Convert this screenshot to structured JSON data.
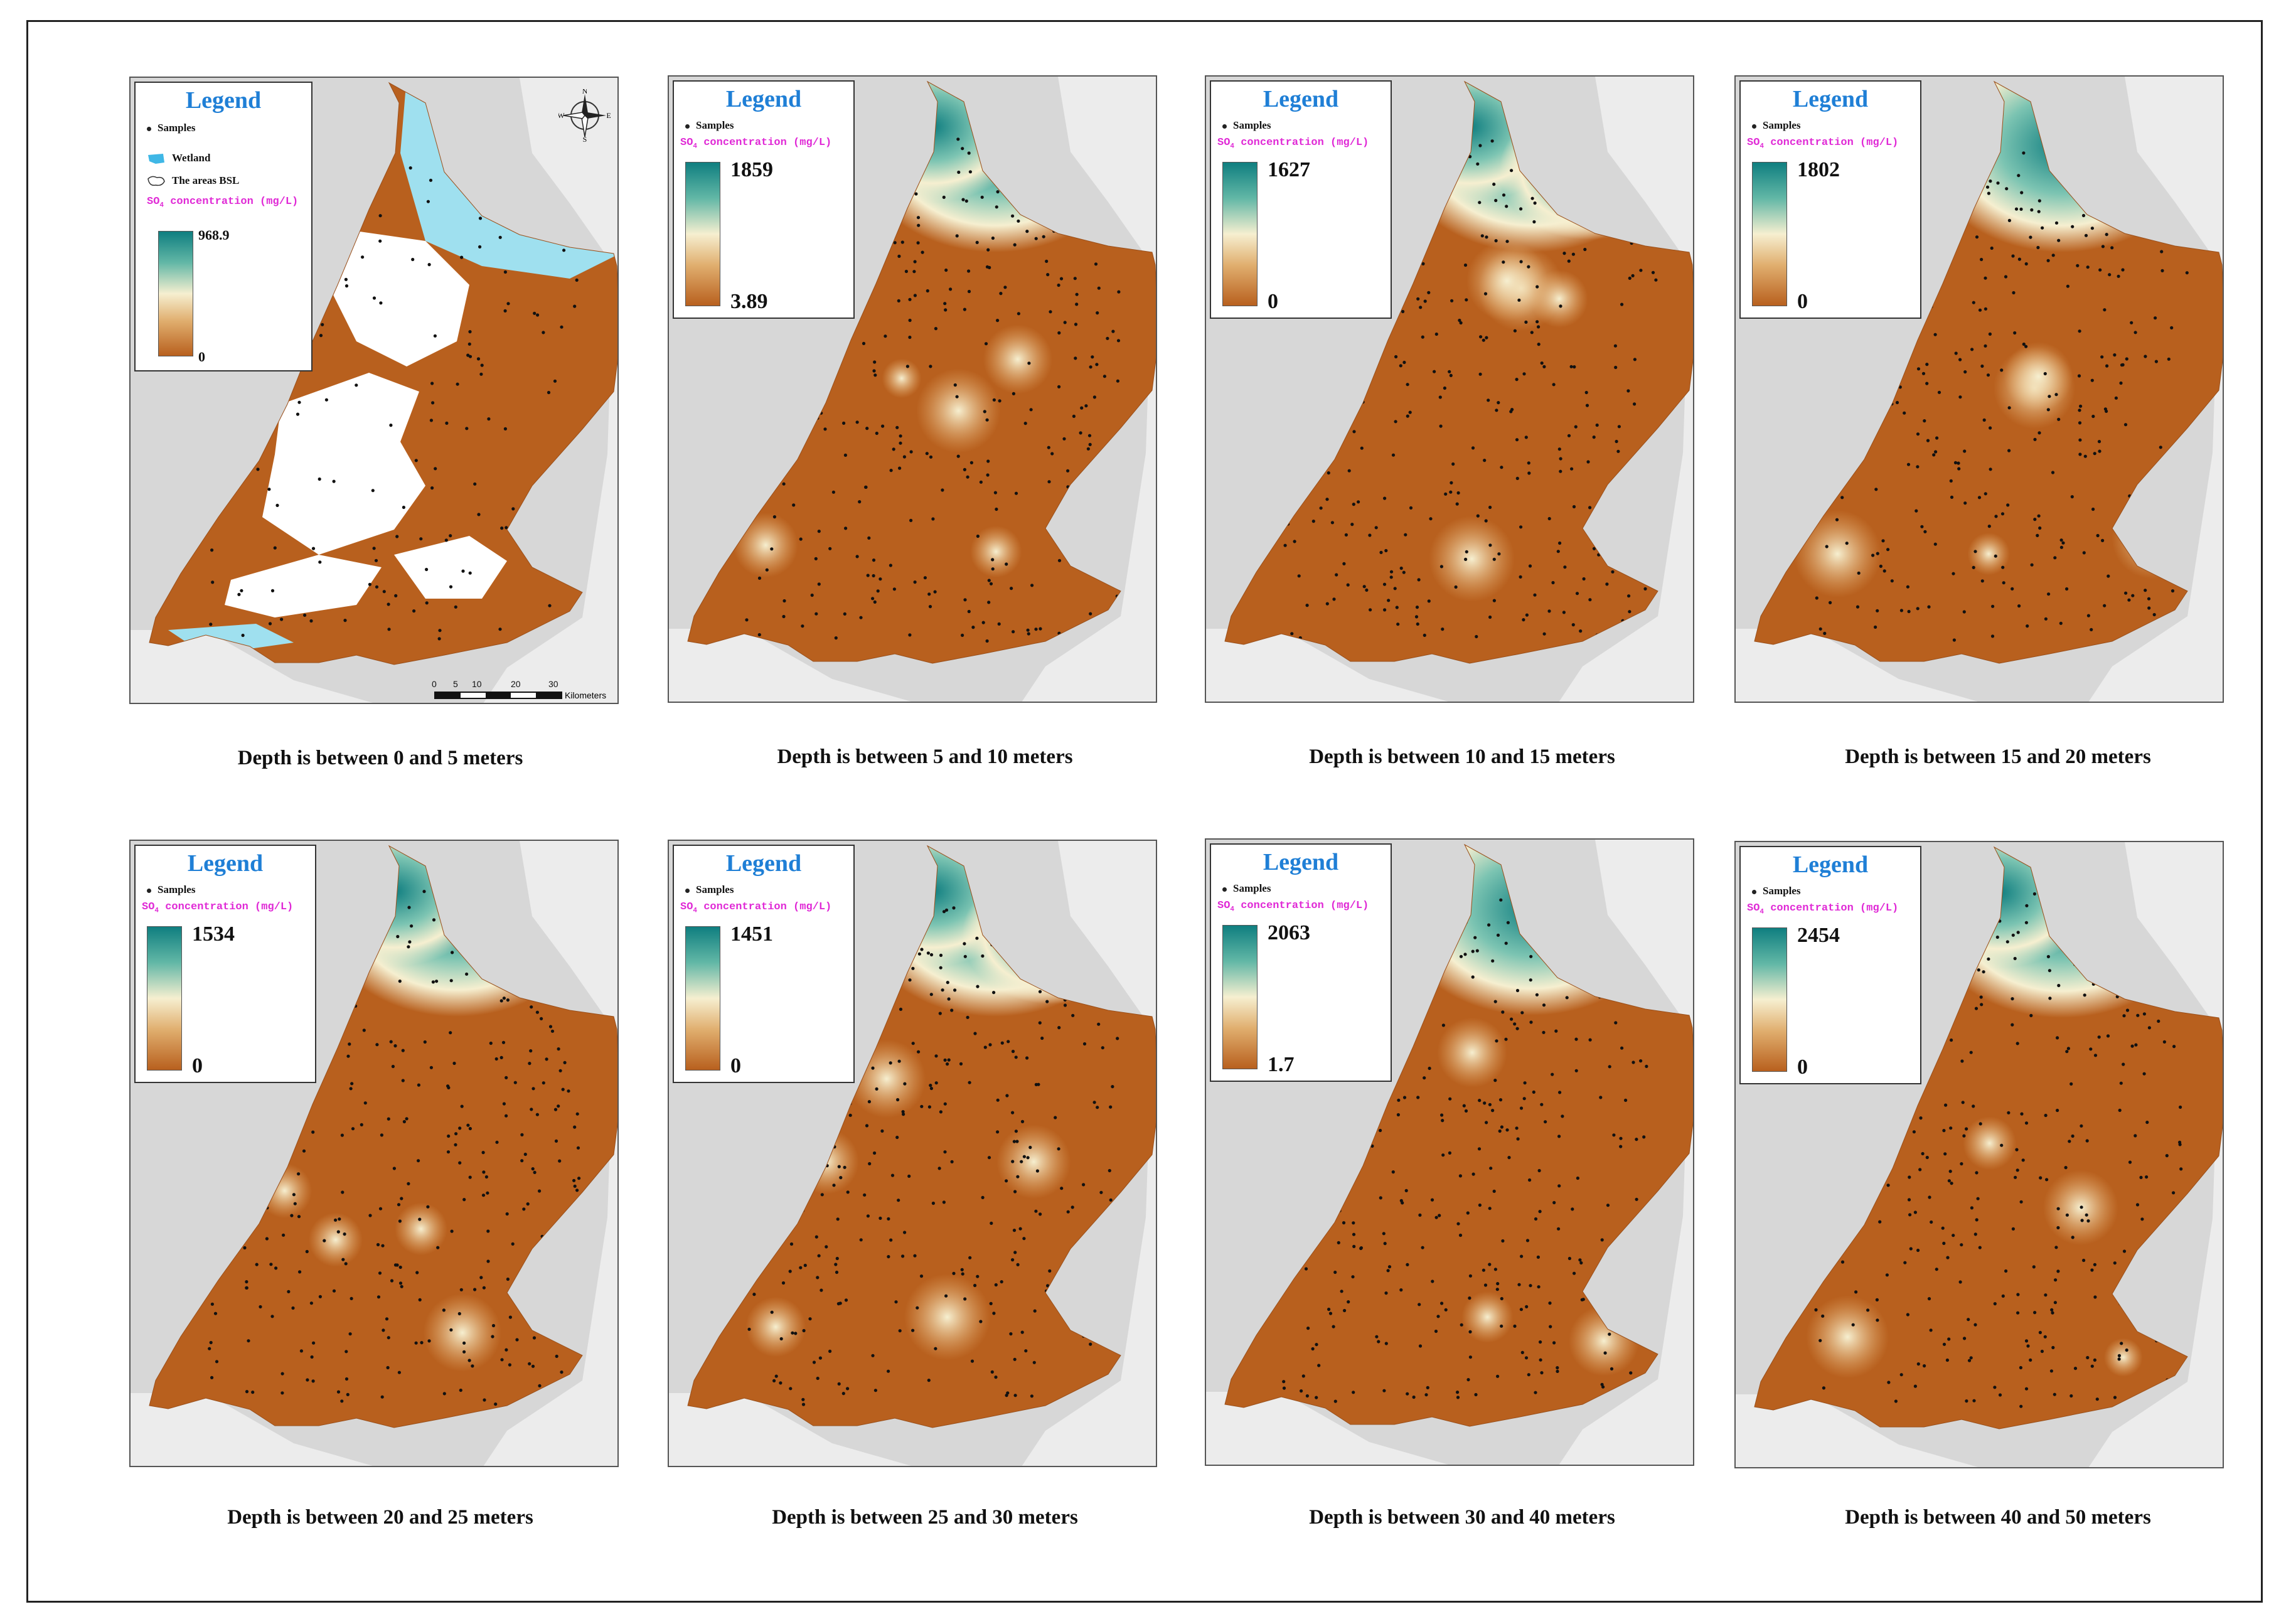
{
  "legend": {
    "title": "Legend",
    "samples_label": "Samples",
    "wetland_label": "Wetland",
    "bsl_label": "The areas BSL",
    "so4_label": "SO",
    "so4_sub": "4",
    "so4_unit": " concentration (mg/L)"
  },
  "compass": {
    "n": "N",
    "s": "S",
    "e": "E",
    "w": "W"
  },
  "scalebar": {
    "t0": "0",
    "t5": "5",
    "t10": "10",
    "t20": "20",
    "t30": "30",
    "unit": "Kilometers"
  },
  "panels": [
    {
      "caption": "Depth is between 0 and 5 meters",
      "max": "968.9",
      "min": "0"
    },
    {
      "caption": "Depth is between 5 and 10 meters",
      "max": "1859",
      "min": "3.89"
    },
    {
      "caption": "Depth is between 10 and 15 meters",
      "max": "1627",
      "min": "0"
    },
    {
      "caption": "Depth is between 15 and 20 meters",
      "max": "1802",
      "min": "0"
    },
    {
      "caption": "Depth is between 20 and 25 meters",
      "max": "1534",
      "min": "0"
    },
    {
      "caption": "Depth is between 25 and 30 meters",
      "max": "1451",
      "min": "0"
    },
    {
      "caption": "Depth is between 30 and 40 meters",
      "max": "2063",
      "min": "1.7"
    },
    {
      "caption": "Depth is between 40 and 50 meters",
      "max": "2454",
      "min": "0"
    }
  ],
  "colors": {
    "high": "#0f7e80",
    "mid": "#f6efd0",
    "low": "#b8601e",
    "wetland": "#9fe0ef",
    "sea": "#d7d7d7",
    "title": "#1f7fd6",
    "so4": "#e02ad6"
  }
}
